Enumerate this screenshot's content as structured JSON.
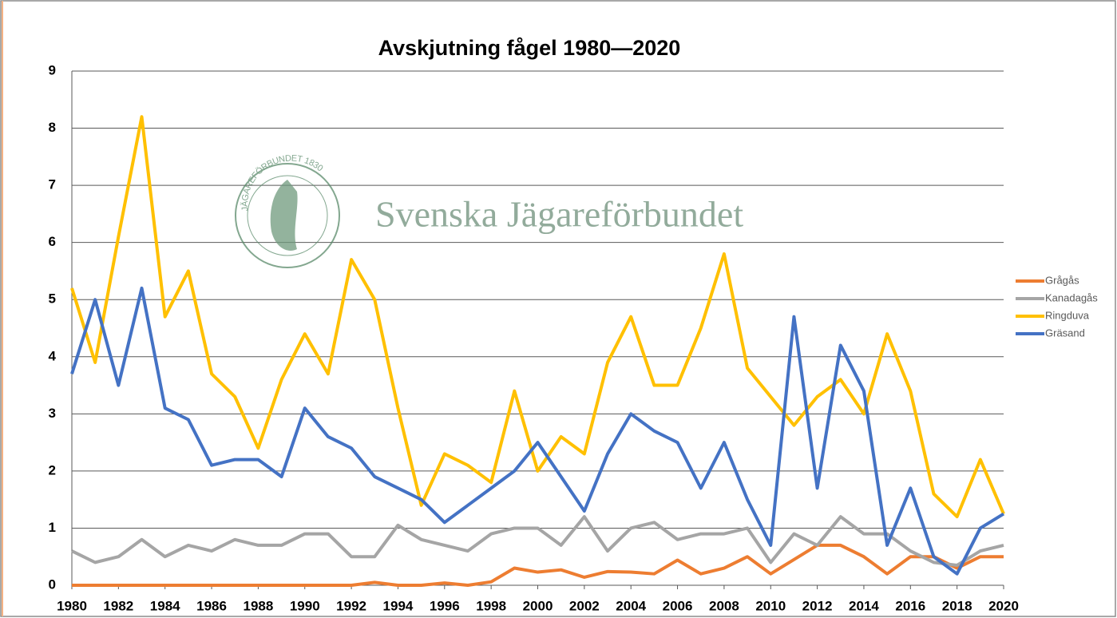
{
  "chart_data": {
    "type": "line",
    "title": "Avskjutning fågel 1980—2020",
    "watermark": "Svenska Jägareförbundet",
    "logo_text": "JÄGAREFÖRBUNDET 1830",
    "x": [
      1980,
      1981,
      1982,
      1983,
      1984,
      1985,
      1986,
      1987,
      1988,
      1989,
      1990,
      1991,
      1992,
      1993,
      1994,
      1995,
      1996,
      1997,
      1998,
      1999,
      2000,
      2001,
      2002,
      2003,
      2004,
      2005,
      2006,
      2007,
      2008,
      2009,
      2010,
      2011,
      2012,
      2013,
      2014,
      2015,
      2016,
      2017,
      2018,
      2019,
      2020
    ],
    "xlim": [
      1980,
      2020
    ],
    "xticks": [
      1980,
      1982,
      1984,
      1986,
      1988,
      1990,
      1992,
      1994,
      1996,
      1998,
      2000,
      2002,
      2004,
      2006,
      2008,
      2010,
      2012,
      2014,
      2016,
      2018,
      2020
    ],
    "ylim": [
      0,
      9
    ],
    "yticks": [
      0,
      1,
      2,
      3,
      4,
      5,
      6,
      7,
      8,
      9
    ],
    "grid": true,
    "legend": "right",
    "series": [
      {
        "name": "Grågås",
        "color": "#ed7d31",
        "values": [
          0,
          0,
          0,
          0,
          0,
          0,
          0,
          0,
          0,
          0,
          0,
          0,
          0,
          0.05,
          0,
          0,
          0.04,
          0,
          0.06,
          0.3,
          0.23,
          0.27,
          0.14,
          0.24,
          0.23,
          0.2,
          0.44,
          0.2,
          0.3,
          0.5,
          0.2,
          0.45,
          0.7,
          0.7,
          0.5,
          0.2,
          0.5,
          0.5,
          0.3,
          0.5,
          0.5
        ]
      },
      {
        "name": "Kanadagås",
        "color": "#a5a5a5",
        "values": [
          0.6,
          0.4,
          0.5,
          0.8,
          0.5,
          0.7,
          0.6,
          0.8,
          0.7,
          0.7,
          0.9,
          0.9,
          0.5,
          0.5,
          1.05,
          0.8,
          0.7,
          0.6,
          0.9,
          1.0,
          1.0,
          0.7,
          1.2,
          0.6,
          1.0,
          1.1,
          0.8,
          0.9,
          0.9,
          1.0,
          0.4,
          0.9,
          0.7,
          1.2,
          0.9,
          0.9,
          0.6,
          0.4,
          0.35,
          0.6,
          0.7
        ]
      },
      {
        "name": "Ringduva",
        "color": "#ffc000",
        "values": [
          5.2,
          3.9,
          6.1,
          8.2,
          4.7,
          5.5,
          3.7,
          3.3,
          2.4,
          3.6,
          4.4,
          3.7,
          5.7,
          5.0,
          3.1,
          1.4,
          2.3,
          2.1,
          1.8,
          3.4,
          2.0,
          2.6,
          2.3,
          3.9,
          4.7,
          3.5,
          3.5,
          4.5,
          5.8,
          3.8,
          3.3,
          2.8,
          3.3,
          3.6,
          3.0,
          4.4,
          3.4,
          1.6,
          1.2,
          2.2,
          1.25
        ]
      },
      {
        "name": "Gräsand",
        "color": "#4472c4",
        "values": [
          3.7,
          5.0,
          3.5,
          5.2,
          3.1,
          2.9,
          2.1,
          2.2,
          2.2,
          1.9,
          3.1,
          2.6,
          2.4,
          1.9,
          1.7,
          1.5,
          1.1,
          1.4,
          1.7,
          2.0,
          2.5,
          1.9,
          1.3,
          2.3,
          3.0,
          2.7,
          2.5,
          1.7,
          2.5,
          1.5,
          0.7,
          4.7,
          1.7,
          4.2,
          3.4,
          0.7,
          1.7,
          0.5,
          0.2,
          1.0,
          1.25
        ]
      }
    ]
  }
}
